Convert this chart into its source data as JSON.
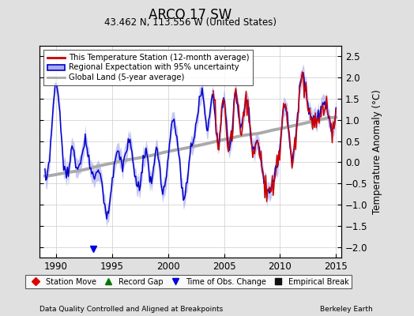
{
  "title": "ARCO 17 SW",
  "subtitle": "43.462 N, 113.556 W (United States)",
  "ylabel": "Temperature Anomaly (°C)",
  "xlabel_left": "Data Quality Controlled and Aligned at Breakpoints",
  "xlabel_right": "Berkeley Earth",
  "ylim": [
    -2.25,
    2.75
  ],
  "xlim": [
    1988.5,
    2015.5
  ],
  "yticks": [
    -2,
    -1.5,
    -1,
    -0.5,
    0,
    0.5,
    1,
    1.5,
    2,
    2.5
  ],
  "xticks": [
    1990,
    1995,
    2000,
    2005,
    2010,
    2015
  ],
  "bg_color": "#e0e0e0",
  "plot_bg_color": "#ffffff",
  "regional_color": "#0000cc",
  "regional_fill_color": "#aaaaee",
  "station_color": "#cc0000",
  "global_color": "#aaaaaa",
  "legend_station": "This Temperature Station (12-month average)",
  "legend_regional": "Regional Expectation with 95% uncertainty",
  "legend_global": "Global Land (5-year average)",
  "marker_labels": [
    "Station Move",
    "Record Gap",
    "Time of Obs. Change",
    "Empirical Break"
  ],
  "marker_colors": [
    "#dd0000",
    "#007700",
    "#0000dd",
    "#111111"
  ],
  "marker_styles": [
    "D",
    "^",
    "v",
    "s"
  ],
  "time_of_obs_year": 1993.3
}
